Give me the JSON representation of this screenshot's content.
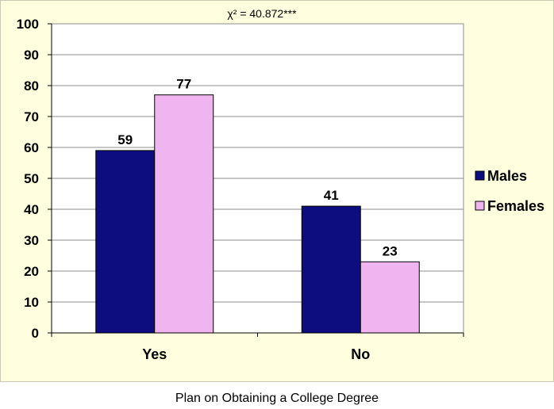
{
  "chart_data": {
    "type": "bar",
    "annotation": "χ² = 40.872***",
    "categories": [
      "Yes",
      "No"
    ],
    "series": [
      {
        "name": "Males",
        "values": [
          59,
          41
        ],
        "color": "#0d0d80"
      },
      {
        "name": "Females",
        "values": [
          77,
          23
        ],
        "color": "#f0b4f0"
      }
    ],
    "ylim": [
      0,
      100
    ],
    "yticks": [
      0,
      10,
      20,
      30,
      40,
      50,
      60,
      70,
      80,
      90,
      100
    ],
    "grid": true,
    "plot_background": "#ffffff",
    "panel_background": "#ffffe0",
    "legend_position": "right"
  },
  "caption": "Plan on Obtaining a College Degree"
}
